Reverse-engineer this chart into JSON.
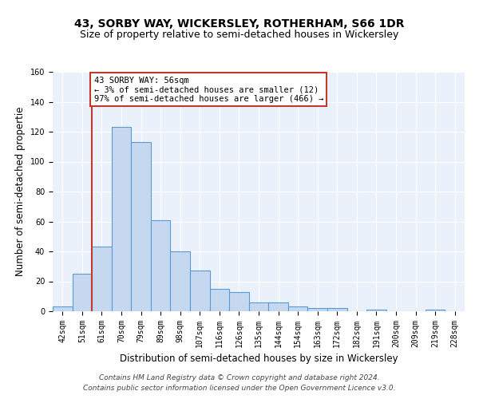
{
  "title": "43, SORBY WAY, WICKERSLEY, ROTHERHAM, S66 1DR",
  "subtitle": "Size of property relative to semi-detached houses in Wickersley",
  "xlabel": "Distribution of semi-detached houses by size in Wickersley",
  "ylabel": "Number of semi-detached propertie",
  "categories": [
    "42sqm",
    "51sqm",
    "61sqm",
    "70sqm",
    "79sqm",
    "89sqm",
    "98sqm",
    "107sqm",
    "116sqm",
    "126sqm",
    "135sqm",
    "144sqm",
    "154sqm",
    "163sqm",
    "172sqm",
    "182sqm",
    "191sqm",
    "200sqm",
    "209sqm",
    "219sqm",
    "228sqm"
  ],
  "values": [
    3,
    25,
    43,
    123,
    113,
    61,
    40,
    27,
    15,
    13,
    6,
    6,
    3,
    2,
    2,
    0,
    1,
    0,
    0,
    1,
    0
  ],
  "bar_color": "#c5d8f0",
  "bar_edge_color": "#5b9bd5",
  "vline_x": 1.5,
  "vline_color": "#c0392b",
  "annotation_text": "43 SORBY WAY: 56sqm\n← 3% of semi-detached houses are smaller (12)\n97% of semi-detached houses are larger (466) →",
  "annotation_box_color": "white",
  "annotation_box_edge": "#c0392b",
  "ylim": [
    0,
    160
  ],
  "yticks": [
    0,
    20,
    40,
    60,
    80,
    100,
    120,
    140,
    160
  ],
  "footer_line1": "Contains HM Land Registry data © Crown copyright and database right 2024.",
  "footer_line2": "Contains public sector information licensed under the Open Government Licence v3.0.",
  "plot_bg_color": "#eaf1fb",
  "grid_color": "white",
  "title_fontsize": 10,
  "subtitle_fontsize": 9,
  "axis_label_fontsize": 8.5,
  "tick_fontsize": 7,
  "footer_fontsize": 6.5,
  "annot_fontsize": 7.5
}
